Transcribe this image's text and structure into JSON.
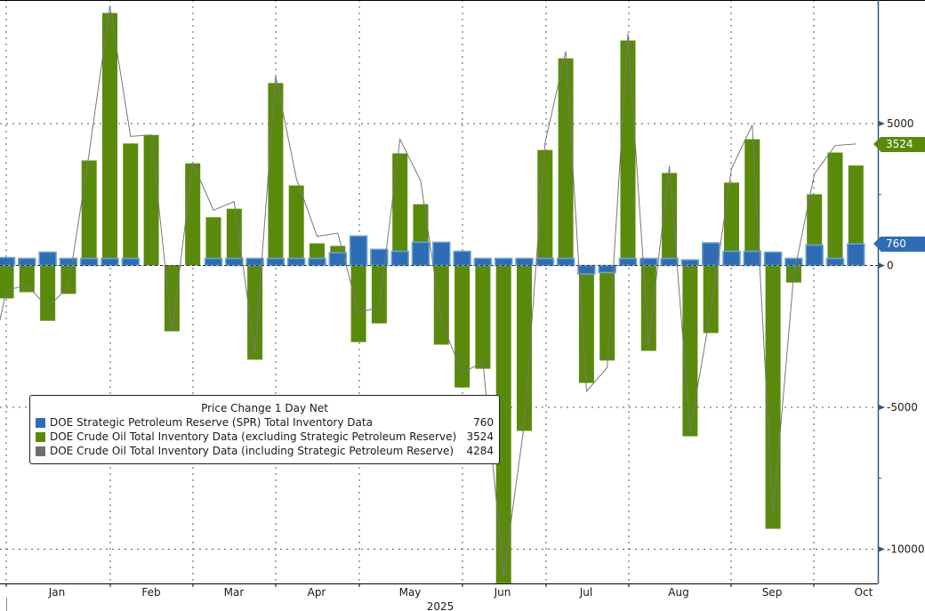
{
  "chart_data": {
    "type": "bar",
    "title": "",
    "legend": {
      "title": "Price Change 1 Day Net",
      "placement": "bottom-left",
      "entries": [
        {
          "name": "DOE Strategic Petroleum Reserve (SPR) Total Inventory Data",
          "value": "760",
          "color": "#2e6db4"
        },
        {
          "name": "DOE Crude Oil Total Inventory Data (excluding Strategic Petroleum Reserve)",
          "value": "3524",
          "color": "#5a8a0c"
        },
        {
          "name": "DOE Crude Oil Total Inventory Data (including Strategic Petroleum Reserve)",
          "value": "4284",
          "color": "#6e6e6e"
        }
      ]
    },
    "xlabel": "2025",
    "x_tick_labels": [
      "Jan",
      "Feb",
      "Mar",
      "Apr",
      "May",
      "Jun",
      "Jul",
      "Aug",
      "Sep",
      "Oct"
    ],
    "ylabel": "",
    "y_ticks": [
      "5000",
      "0",
      "-5000",
      "-10000"
    ],
    "y_tick_values": [
      5000,
      0,
      -5000,
      -10000
    ],
    "ylim": [
      -11300,
      9300
    ],
    "grid": true,
    "series": [
      {
        "name": "DOE Crude Oil Total Inventory Data (excluding Strategic Petroleum Reserve)",
        "type": "bar",
        "color": "#5a8a0c",
        "values": [
          -1160,
          -940,
          -1950,
          -1000,
          3700,
          8900,
          4300,
          4600,
          -2320,
          3600,
          1700,
          2000,
          -3320,
          6430,
          2820,
          780,
          690,
          -2700,
          -2040,
          3950,
          2160,
          -2790,
          -4300,
          -3640,
          -11200,
          -5830,
          4070,
          7300,
          -4140,
          -3350,
          7930,
          -3010,
          3260,
          -6020,
          -2380,
          2920,
          4450,
          -9280,
          -600,
          2510,
          3980,
          3524
        ]
      },
      {
        "name": "DOE Strategic Petroleum Reserve (SPR) Total Inventory Data",
        "type": "bar",
        "color": "#2e6db4",
        "values": [
          280,
          250,
          470,
          250,
          250,
          250,
          250,
          0,
          0,
          0,
          250,
          250,
          250,
          250,
          250,
          250,
          450,
          1040,
          570,
          500,
          820,
          820,
          500,
          250,
          250,
          250,
          250,
          250,
          -300,
          -250,
          250,
          250,
          250,
          200,
          800,
          500,
          500,
          470,
          250,
          720,
          250,
          760
        ]
      },
      {
        "name": "DOE Crude Oil Total Inventory Data (including Strategic Petroleum Reserve)",
        "type": "line",
        "color": "#6e6e6e",
        "values": [
          -880,
          -690,
          -1480,
          -750,
          3950,
          9150,
          4550,
          4600,
          -2320,
          3600,
          1950,
          2250,
          -3070,
          6680,
          3070,
          1030,
          1140,
          -1660,
          -1470,
          4450,
          2980,
          -1970,
          -3800,
          -3390,
          -10950,
          -5580,
          4320,
          7550,
          -4440,
          -3600,
          8180,
          -2760,
          3510,
          -5820,
          -1580,
          3420,
          4950,
          -8810,
          -350,
          3230,
          4230,
          4284
        ]
      }
    ],
    "last_value_tags": [
      {
        "series": "DOE Crude Oil Total Inventory Data (excluding Strategic Petroleum Reserve)",
        "value": "3524",
        "color": "#5a8a0c"
      },
      {
        "series": "DOE Strategic Petroleum Reserve (SPR) Total Inventory Data",
        "value": "760",
        "color": "#2e6db4"
      }
    ]
  }
}
